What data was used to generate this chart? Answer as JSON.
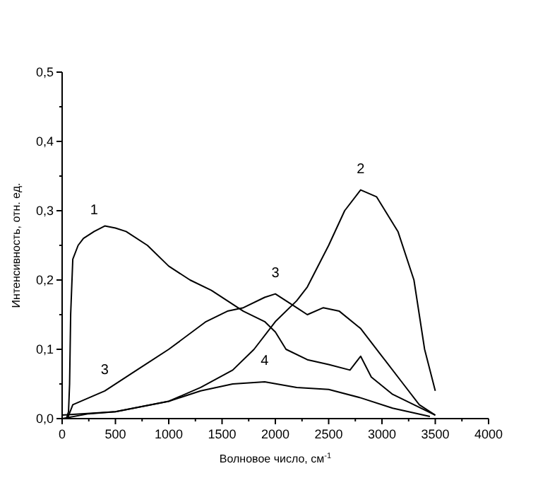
{
  "chart_data": {
    "type": "line",
    "xlabel": "Волновое число, см$^{-1}$",
    "ylabel": "Интенсивность, отн. ед.",
    "xlim": [
      0,
      4000
    ],
    "ylim": [
      0,
      0.5
    ],
    "xticks": [
      0,
      {
        "value": 250,
        "label": null
      },
      500,
      {
        "value": 750,
        "label": null
      },
      1000,
      {
        "value": 1250,
        "label": null
      },
      1500,
      {
        "value": 1750,
        "label": null
      },
      2000,
      {
        "value": 2250,
        "label": null
      },
      2500,
      {
        "value": 2750,
        "label": null
      },
      3000,
      {
        "value": 3250,
        "label": null
      },
      3500,
      {
        "value": 3750,
        "label": null
      },
      4000
    ],
    "yticks": [
      {
        "value": 0,
        "label": "0,0"
      },
      {
        "value": 0.05,
        "label": null
      },
      {
        "value": 0.1,
        "label": "0,1"
      },
      {
        "value": 0.15,
        "label": null
      },
      {
        "value": 0.2,
        "label": "0,2"
      },
      {
        "value": 0.25,
        "label": null
      },
      {
        "value": 0.3,
        "label": "0,3"
      },
      {
        "value": 0.35,
        "label": null
      },
      {
        "value": 0.4,
        "label": "0,4"
      },
      {
        "value": 0.45,
        "label": null
      },
      {
        "value": 0.5,
        "label": "0,5"
      }
    ],
    "grid": false,
    "marker": "none",
    "line_style": "solid",
    "series": [
      {
        "color": "#000000",
        "x": [
          40,
          60,
          70,
          80,
          100,
          150,
          200,
          300,
          400,
          500,
          600,
          800,
          1000,
          1200,
          1400,
          1550,
          1700,
          1900,
          2000,
          2100,
          2300,
          2500,
          2700,
          2800,
          2900,
          3100,
          3300,
          3500
        ],
        "values": [
          0.0,
          0.01,
          0.05,
          0.15,
          0.23,
          0.25,
          0.26,
          0.27,
          0.278,
          0.275,
          0.27,
          0.25,
          0.22,
          0.2,
          0.185,
          0.17,
          0.155,
          0.14,
          0.125,
          0.1,
          0.085,
          0.078,
          0.07,
          0.09,
          0.06,
          0.035,
          0.02,
          0.005
        ]
      },
      {
        "color": "#000000",
        "x": [
          0,
          250,
          500,
          1000,
          1300,
          1600,
          1800,
          2000,
          2200,
          2300,
          2500,
          2650,
          2800,
          2950,
          3150,
          3300,
          3400,
          3500
        ],
        "values": [
          0.0,
          0.007,
          0.01,
          0.025,
          0.045,
          0.07,
          0.1,
          0.14,
          0.17,
          0.19,
          0.25,
          0.3,
          0.33,
          0.32,
          0.27,
          0.2,
          0.1,
          0.04
        ]
      },
      {
        "color": "#000000",
        "x": [
          50,
          100,
          250,
          400,
          700,
          1000,
          1350,
          1550,
          1700,
          1900,
          2000,
          2100,
          2200,
          2300,
          2450,
          2600,
          2800,
          3000,
          3200,
          3350,
          3500
        ],
        "values": [
          0.0,
          0.02,
          0.03,
          0.04,
          0.07,
          0.1,
          0.14,
          0.155,
          0.16,
          0.175,
          0.18,
          0.17,
          0.16,
          0.15,
          0.16,
          0.155,
          0.13,
          0.09,
          0.05,
          0.02,
          0.005
        ]
      },
      {
        "color": "#000000",
        "x": [
          0,
          500,
          1000,
          1300,
          1600,
          1900,
          2200,
          2500,
          2800,
          3100,
          3450
        ],
        "values": [
          0.005,
          0.01,
          0.025,
          0.04,
          0.05,
          0.053,
          0.045,
          0.042,
          0.03,
          0.015,
          0.003
        ]
      }
    ],
    "annotations": [
      {
        "text": "1",
        "x": 300,
        "y": 0.27
      },
      {
        "text": "2",
        "x": 2800,
        "y": 0.33
      },
      {
        "text": "3",
        "x": 2000,
        "y": 0.18
      },
      {
        "text": "3",
        "x": 400,
        "y": 0.04
      },
      {
        "text": "4",
        "x": 1900,
        "y": 0.053
      }
    ]
  }
}
